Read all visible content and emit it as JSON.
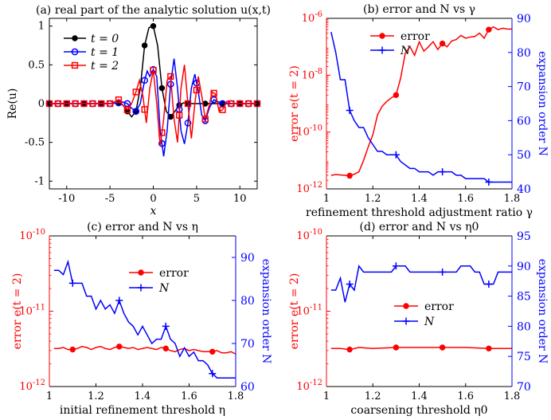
{
  "chart_data": [
    {
      "type": "line",
      "title": "(a) real part of the analytic solution u(x,t)",
      "xlabel": "x",
      "ylabel": "Re(u)",
      "xlim": [
        -12,
        12
      ],
      "ylim": [
        -1.1,
        1.1
      ],
      "xticks": [
        "-10",
        "-5",
        "0",
        "5",
        "10"
      ],
      "yticks": [
        "-1",
        "-0.5",
        "0",
        "0.5",
        "1"
      ],
      "legend_position": "top-left",
      "series": [
        {
          "name": "t = 0",
          "color": "#000000",
          "marker": "circle",
          "x": [
            -12,
            -11,
            -10,
            -9,
            -8,
            -7,
            -6,
            -5,
            -4,
            -3.5,
            -3,
            -2.5,
            -2,
            -1.5,
            -1,
            -0.5,
            0,
            0.5,
            1,
            1.5,
            2,
            2.5,
            3,
            3.5,
            4,
            5,
            6,
            7,
            8,
            9,
            10,
            11,
            12
          ],
          "y": [
            0,
            0,
            0,
            0,
            0,
            0,
            0,
            0,
            0.01,
            -0.02,
            -0.1,
            -0.17,
            -0.1,
            0.2,
            0.75,
            0.98,
            1.0,
            0.75,
            0.2,
            -0.1,
            -0.17,
            -0.1,
            -0.02,
            0.01,
            0,
            0,
            0,
            0,
            0,
            0,
            0,
            0,
            0
          ],
          "marker_x": [
            -12,
            -10,
            -8,
            -6,
            -4,
            -3,
            -2,
            -1,
            0,
            1,
            2,
            3,
            4,
            6,
            8,
            10,
            12
          ]
        },
        {
          "name": "t = 1",
          "color": "#0000ff",
          "marker": "circle-open",
          "x": [
            -12,
            -10,
            -8,
            -6,
            -5,
            -4,
            -3.5,
            -3,
            -2.5,
            -2,
            -1.5,
            -1,
            -0.7,
            -0.4,
            0,
            0.4,
            0.8,
            1.2,
            1.6,
            2,
            2.4,
            2.8,
            3.2,
            3.6,
            4,
            4.4,
            4.8,
            5.2,
            5.6,
            6,
            6.5,
            7,
            8,
            10,
            12
          ],
          "y": [
            0,
            0,
            0,
            0,
            0,
            0.01,
            0.02,
            0.0,
            -0.06,
            -0.1,
            0.0,
            0.3,
            0.42,
            0.35,
            0.44,
            0.35,
            -0.35,
            -0.68,
            -0.35,
            0.25,
            0.58,
            0.2,
            -0.35,
            -0.52,
            -0.25,
            0.2,
            0.38,
            0.15,
            -0.15,
            -0.22,
            -0.05,
            0.05,
            0,
            0,
            0
          ],
          "marker_x": [
            -12,
            -11,
            -10,
            -9,
            -8,
            -7,
            -6,
            -5,
            -4,
            -3,
            -2,
            -1,
            0,
            1,
            2,
            3,
            4,
            5,
            6,
            7,
            8,
            9,
            10,
            11,
            12
          ]
        },
        {
          "name": "t = 2",
          "color": "#ff0000",
          "marker": "square-open",
          "x": [
            -12,
            -10,
            -8,
            -6,
            -5,
            -4.5,
            -4,
            -3.5,
            -3,
            -2.5,
            -2,
            -1.6,
            -1.2,
            -0.8,
            -0.4,
            0,
            0.4,
            0.8,
            1.2,
            1.6,
            2,
            2.4,
            2.8,
            3.2,
            3.6,
            4,
            4.4,
            4.8,
            5.2,
            5.6,
            6,
            6.4,
            6.8,
            7.2,
            7.6,
            8,
            8.5,
            9,
            10,
            12
          ],
          "y": [
            0,
            0,
            0,
            0,
            0,
            0.02,
            0.05,
            -0.02,
            -0.08,
            0.0,
            0.15,
            0.3,
            0.1,
            -0.25,
            0.2,
            0.43,
            0.0,
            -0.55,
            -0.2,
            0.3,
            0.35,
            -0.2,
            -0.5,
            0.2,
            0.5,
            0.0,
            -0.45,
            0.0,
            0.35,
            0.1,
            -0.2,
            -0.05,
            0.15,
            0.12,
            -0.1,
            -0.08,
            0.03,
            0,
            0,
            0
          ],
          "marker_x": [
            -12,
            -11,
            -10,
            -9,
            -8,
            -7,
            -6,
            -5,
            -4,
            -3,
            -2,
            -1,
            0,
            1,
            2,
            3,
            4,
            5,
            6,
            7,
            8,
            9,
            10,
            11,
            12
          ]
        }
      ]
    },
    {
      "type": "line",
      "title": "(b) error and N vs γ",
      "xlabel": "refinement threshold adjustment ratio γ",
      "ylabel_left": "error e(t = 2)",
      "ylabel_right": "expansion order N",
      "xlim": [
        1,
        1.8
      ],
      "ylim_left": [
        1e-12,
        1e-06
      ],
      "ylim_right": [
        40,
        90
      ],
      "yscale_left": "log",
      "xticks": [
        "1",
        "1.2",
        "1.4",
        "1.6",
        "1.8"
      ],
      "yticks_left": [
        "10-12",
        "10-10",
        "10-8",
        "10-6"
      ],
      "yticks_right": [
        "40",
        "50",
        "60",
        "70",
        "80",
        "90"
      ],
      "legend_position": "top-center",
      "series": [
        {
          "name": "error",
          "axis": "left",
          "color": "#ff0000",
          "marker": "dot",
          "x": [
            1.02,
            1.04,
            1.06,
            1.08,
            1.1,
            1.12,
            1.14,
            1.16,
            1.18,
            1.2,
            1.22,
            1.24,
            1.26,
            1.28,
            1.3,
            1.32,
            1.34,
            1.36,
            1.38,
            1.4,
            1.42,
            1.44,
            1.46,
            1.48,
            1.5,
            1.52,
            1.54,
            1.56,
            1.58,
            1.6,
            1.62,
            1.64,
            1.66,
            1.68,
            1.7,
            1.72,
            1.74,
            1.76,
            1.78,
            1.8
          ],
          "y": [
            3e-12,
            3.2e-12,
            3.1e-12,
            3e-12,
            2.9e-12,
            3.3e-12,
            4e-12,
            1e-11,
            3e-11,
            8e-11,
            4e-10,
            8e-10,
            1.2e-09,
            1.6e-09,
            2e-09,
            8e-09,
            6e-08,
            1e-07,
            5e-08,
            1.5e-07,
            7e-08,
            1e-07,
            1.5e-07,
            8e-08,
            1.3e-07,
            1e-07,
            1.6e-07,
            1.8e-07,
            2.5e-07,
            2e-07,
            2.2e-07,
            2.3e-07,
            3e-07,
            2e-07,
            4e-07,
            5e-07,
            4e-07,
            4.5e-07,
            4.2e-07,
            4.2e-07
          ],
          "marker_x": [
            1.1,
            1.3,
            1.5,
            1.7
          ]
        },
        {
          "name": "N",
          "axis": "right",
          "color": "#0000ff",
          "marker": "plus",
          "x": [
            1.02,
            1.04,
            1.06,
            1.08,
            1.1,
            1.12,
            1.14,
            1.16,
            1.18,
            1.2,
            1.22,
            1.24,
            1.26,
            1.28,
            1.3,
            1.32,
            1.34,
            1.36,
            1.38,
            1.4,
            1.42,
            1.44,
            1.46,
            1.48,
            1.5,
            1.52,
            1.54,
            1.56,
            1.58,
            1.6,
            1.62,
            1.64,
            1.66,
            1.68,
            1.7,
            1.72,
            1.74,
            1.76,
            1.78,
            1.8
          ],
          "y": [
            86,
            80,
            72,
            72,
            63,
            60,
            58,
            58,
            55,
            53,
            51,
            51,
            50,
            50,
            50,
            48,
            47,
            46,
            46,
            45,
            45,
            45,
            44,
            45,
            45,
            45,
            45,
            44,
            44,
            43,
            43,
            43,
            43,
            43,
            42,
            42,
            42,
            42,
            42,
            42
          ],
          "marker_x": [
            1.1,
            1.3,
            1.5,
            1.7
          ]
        }
      ]
    },
    {
      "type": "line",
      "title": "(c) error and N vs η",
      "xlabel": "initial refinement threshold η",
      "ylabel_left": "error e(t = 2)",
      "ylabel_right": "expansion order N",
      "xlim": [
        1,
        1.8
      ],
      "ylim_left": [
        1e-12,
        1e-10
      ],
      "ylim_right": [
        60,
        95
      ],
      "yscale_left": "log",
      "xticks": [
        "1",
        "1.2",
        "1.4",
        "1.6",
        "1.8"
      ],
      "yticks_left": [
        "10-12",
        "10-11",
        "10-10"
      ],
      "yticks_right": [
        "60",
        "70",
        "80",
        "90"
      ],
      "legend_position": "center",
      "series": [
        {
          "name": "error",
          "axis": "left",
          "color": "#ff0000",
          "marker": "dot",
          "x": [
            1.02,
            1.04,
            1.06,
            1.08,
            1.1,
            1.12,
            1.14,
            1.16,
            1.18,
            1.2,
            1.22,
            1.24,
            1.26,
            1.28,
            1.3,
            1.32,
            1.34,
            1.36,
            1.38,
            1.4,
            1.42,
            1.44,
            1.46,
            1.48,
            1.5,
            1.52,
            1.54,
            1.56,
            1.58,
            1.6,
            1.62,
            1.64,
            1.66,
            1.68,
            1.7,
            1.72,
            1.74,
            1.76,
            1.78,
            1.8
          ],
          "y": [
            3.2e-12,
            3.2e-12,
            3.3e-12,
            3.1e-12,
            3.1e-12,
            3.2e-12,
            3.4e-12,
            3.3e-12,
            3.1e-12,
            3.3e-12,
            3.4e-12,
            3.2e-12,
            3.1e-12,
            3.3e-12,
            3.4e-12,
            3.3e-12,
            3.2e-12,
            3.3e-12,
            3.1e-12,
            3.2e-12,
            3.3e-12,
            3.2e-12,
            3.1e-12,
            3.3e-12,
            3.2e-12,
            3e-12,
            2.9e-12,
            3.1e-12,
            3.2e-12,
            3e-12,
            3.1e-12,
            3e-12,
            2.9e-12,
            2.9e-12,
            2.9e-12,
            3e-12,
            2.8e-12,
            2.8e-12,
            2.9e-12,
            2.7e-12
          ],
          "marker_x": [
            1.1,
            1.3,
            1.5,
            1.7
          ]
        },
        {
          "name": "N",
          "axis": "right",
          "color": "#0000ff",
          "marker": "plus",
          "x": [
            1.02,
            1.04,
            1.06,
            1.08,
            1.1,
            1.12,
            1.14,
            1.16,
            1.18,
            1.2,
            1.22,
            1.24,
            1.26,
            1.28,
            1.3,
            1.32,
            1.34,
            1.36,
            1.38,
            1.4,
            1.42,
            1.44,
            1.46,
            1.48,
            1.5,
            1.52,
            1.54,
            1.56,
            1.58,
            1.6,
            1.62,
            1.64,
            1.66,
            1.68,
            1.7,
            1.72,
            1.74,
            1.76,
            1.78,
            1.8
          ],
          "y": [
            87,
            87,
            86,
            89,
            84,
            84,
            84,
            81,
            81,
            78,
            80,
            78,
            79,
            77,
            80,
            77,
            75,
            74,
            72,
            74,
            72,
            70,
            71,
            71,
            74,
            71,
            70,
            67,
            69,
            67,
            68,
            66,
            66,
            65,
            63,
            62,
            62,
            62,
            62,
            62
          ],
          "marker_x": [
            1.1,
            1.3,
            1.5,
            1.7
          ]
        }
      ]
    },
    {
      "type": "line",
      "title": "(d) error and N vs η0",
      "xlabel": "coarsening threshold η0",
      "ylabel_left": "error e(t = 2)",
      "ylabel_right": "expansion order N",
      "xlim": [
        1,
        1.8
      ],
      "ylim_left": [
        1e-12,
        1e-10
      ],
      "ylim_right": [
        70,
        95
      ],
      "yscale_left": "log",
      "xticks": [
        "1",
        "1.2",
        "1.4",
        "1.6",
        "1.8"
      ],
      "yticks_left": [
        "10-12",
        "10-11",
        "10-10"
      ],
      "yticks_right": [
        "70",
        "75",
        "80",
        "85",
        "90",
        "95"
      ],
      "legend_position": "center",
      "series": [
        {
          "name": "error",
          "axis": "left",
          "color": "#ff0000",
          "marker": "dot",
          "x": [
            1.02,
            1.06,
            1.1,
            1.14,
            1.2,
            1.3,
            1.4,
            1.5,
            1.6,
            1.7,
            1.8
          ],
          "y": [
            3.2e-12,
            3.2e-12,
            3.1e-12,
            3.3e-12,
            3.2e-12,
            3.3e-12,
            3.3e-12,
            3.3e-12,
            3.3e-12,
            3.2e-12,
            3.2e-12
          ],
          "marker_x": [
            1.1,
            1.3,
            1.5,
            1.7
          ]
        },
        {
          "name": "N",
          "axis": "right",
          "color": "#0000ff",
          "marker": "plus",
          "x": [
            1.02,
            1.04,
            1.06,
            1.08,
            1.1,
            1.12,
            1.14,
            1.16,
            1.18,
            1.2,
            1.22,
            1.24,
            1.26,
            1.28,
            1.3,
            1.32,
            1.34,
            1.36,
            1.38,
            1.4,
            1.42,
            1.44,
            1.46,
            1.48,
            1.5,
            1.52,
            1.54,
            1.56,
            1.58,
            1.6,
            1.62,
            1.64,
            1.66,
            1.68,
            1.7,
            1.72,
            1.74,
            1.76,
            1.78,
            1.8
          ],
          "y": [
            86,
            86,
            88,
            84,
            87,
            86,
            90,
            89,
            89,
            89,
            89,
            89,
            89,
            89,
            90,
            90,
            90,
            89,
            89,
            89,
            89,
            89,
            89,
            89,
            89,
            89,
            89,
            89,
            90,
            90,
            90,
            89,
            89,
            87,
            87,
            87,
            89,
            89,
            89,
            89
          ],
          "marker_x": [
            1.1,
            1.3,
            1.5,
            1.7
          ]
        }
      ]
    }
  ]
}
